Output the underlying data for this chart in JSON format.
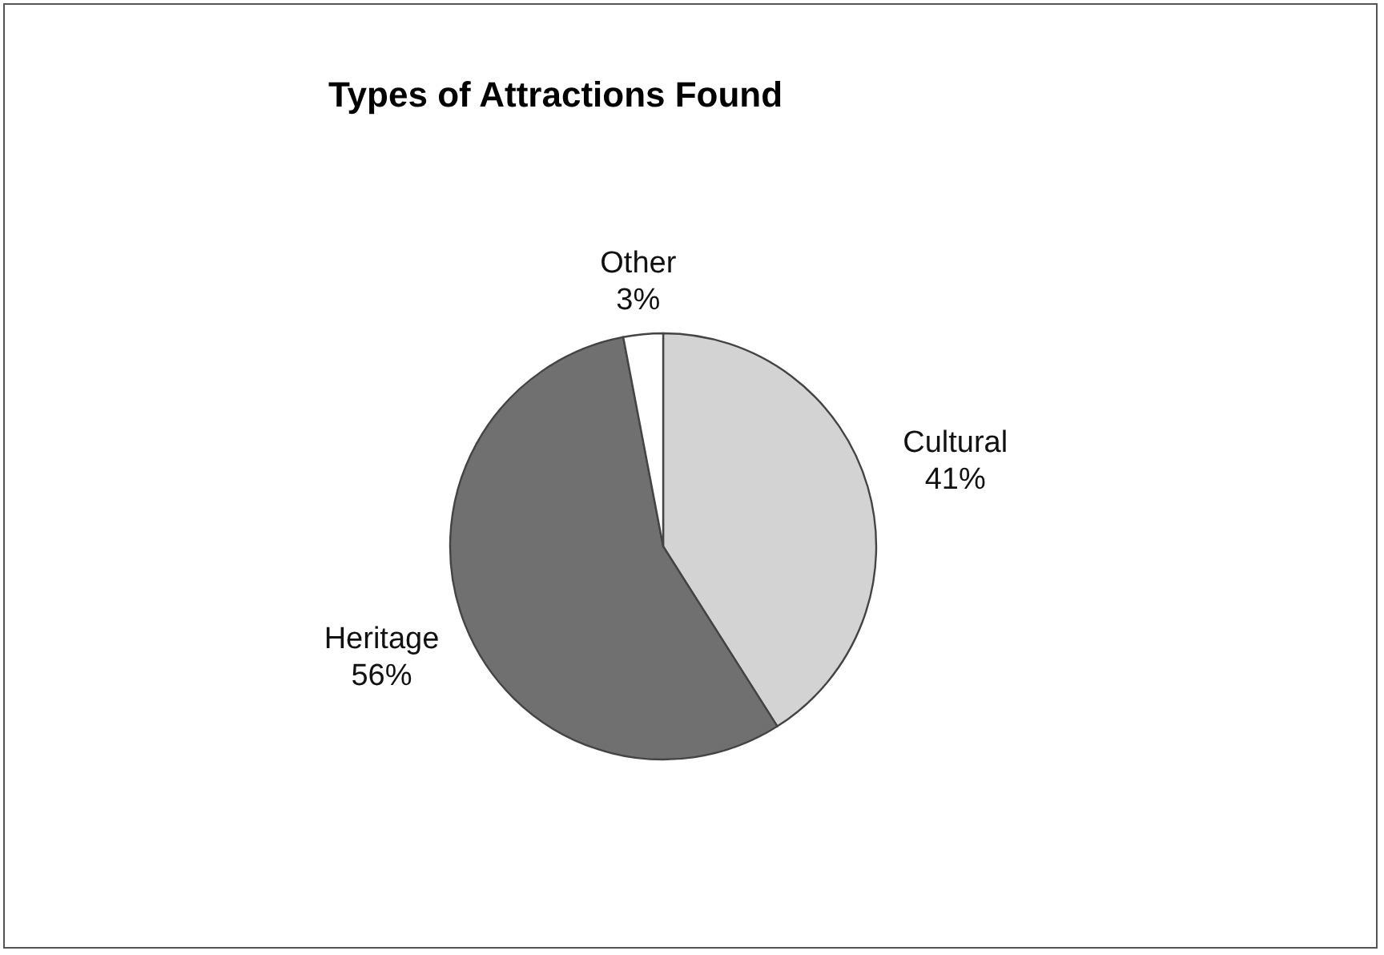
{
  "chart_data": {
    "type": "pie",
    "title": "Types of Attractions Found",
    "categories": [
      "Cultural",
      "Heritage",
      "Other"
    ],
    "values": [
      41,
      56,
      3
    ],
    "colors": [
      "#d3d3d3",
      "#707070",
      "#ffffff"
    ],
    "value_labels": [
      "41%",
      "56%",
      "3%"
    ],
    "legend": false
  }
}
